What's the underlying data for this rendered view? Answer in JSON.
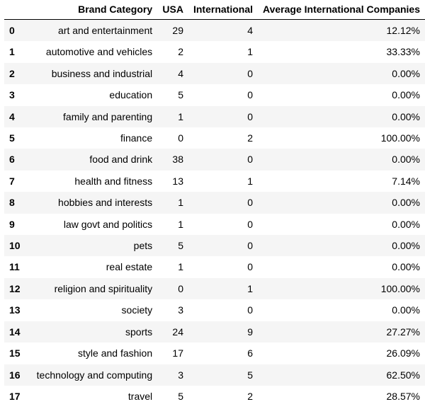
{
  "table": {
    "columns": [
      "",
      "Brand Category",
      "USA",
      "International",
      "Average International Companies"
    ],
    "rows": [
      {
        "index": "0",
        "category": "art and entertainment",
        "usa": "29",
        "international": "4",
        "avg": "12.12%"
      },
      {
        "index": "1",
        "category": "automotive and vehicles",
        "usa": "2",
        "international": "1",
        "avg": "33.33%"
      },
      {
        "index": "2",
        "category": "business and industrial",
        "usa": "4",
        "international": "0",
        "avg": "0.00%"
      },
      {
        "index": "3",
        "category": "education",
        "usa": "5",
        "international": "0",
        "avg": "0.00%"
      },
      {
        "index": "4",
        "category": "family and parenting",
        "usa": "1",
        "international": "0",
        "avg": "0.00%"
      },
      {
        "index": "5",
        "category": "finance",
        "usa": "0",
        "international": "2",
        "avg": "100.00%"
      },
      {
        "index": "6",
        "category": "food and drink",
        "usa": "38",
        "international": "0",
        "avg": "0.00%"
      },
      {
        "index": "7",
        "category": "health and fitness",
        "usa": "13",
        "international": "1",
        "avg": "7.14%"
      },
      {
        "index": "8",
        "category": "hobbies and interests",
        "usa": "1",
        "international": "0",
        "avg": "0.00%"
      },
      {
        "index": "9",
        "category": "law govt and politics",
        "usa": "1",
        "international": "0",
        "avg": "0.00%"
      },
      {
        "index": "10",
        "category": "pets",
        "usa": "5",
        "international": "0",
        "avg": "0.00%"
      },
      {
        "index": "11",
        "category": "real estate",
        "usa": "1",
        "international": "0",
        "avg": "0.00%"
      },
      {
        "index": "12",
        "category": "religion and spirituality",
        "usa": "0",
        "international": "1",
        "avg": "100.00%"
      },
      {
        "index": "13",
        "category": "society",
        "usa": "3",
        "international": "0",
        "avg": "0.00%"
      },
      {
        "index": "14",
        "category": "sports",
        "usa": "24",
        "international": "9",
        "avg": "27.27%"
      },
      {
        "index": "15",
        "category": "style and fashion",
        "usa": "17",
        "international": "6",
        "avg": "26.09%"
      },
      {
        "index": "16",
        "category": "technology and computing",
        "usa": "3",
        "international": "5",
        "avg": "62.50%"
      },
      {
        "index": "17",
        "category": "travel",
        "usa": "5",
        "international": "2",
        "avg": "28.57%"
      }
    ]
  }
}
